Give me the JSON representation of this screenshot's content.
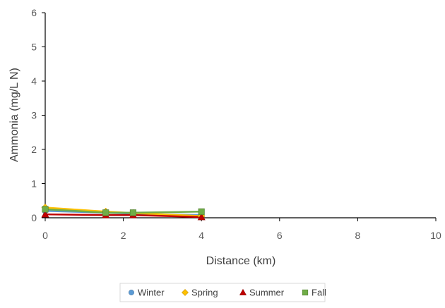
{
  "chart_data": {
    "type": "line",
    "title": "",
    "xlabel": "Distance (km)",
    "ylabel": "Ammonia (mg/L N)",
    "xlim": [
      0,
      10
    ],
    "ylim": [
      0,
      6
    ],
    "xticks": [
      "0",
      "2",
      "4",
      "6",
      "8",
      "10"
    ],
    "yticks": [
      "0",
      "1",
      "2",
      "3",
      "4",
      "5",
      "6"
    ],
    "grid": false,
    "legend_position": "bottom",
    "series": [
      {
        "name": "Winter",
        "marker": "circle",
        "color": "#5b9bd5",
        "line_color": "#5b9bd5",
        "x": [
          0,
          1.55,
          2.25,
          4.0
        ],
        "y": [
          0.2,
          0.15,
          0.12,
          0.08
        ]
      },
      {
        "name": "Spring",
        "marker": "diamond",
        "color": "#ffc000",
        "line_color": "#ffc000",
        "x": [
          0,
          1.55,
          2.25,
          4.0
        ],
        "y": [
          0.3,
          0.18,
          0.14,
          0.05
        ]
      },
      {
        "name": "Summer",
        "marker": "triangle",
        "color": "#c00000",
        "line_color": "#c00000",
        "x": [
          0,
          1.55,
          2.25,
          4.0
        ],
        "y": [
          0.1,
          0.08,
          0.08,
          0.02
        ]
      },
      {
        "name": "Fall",
        "marker": "square",
        "color": "#70ad47",
        "line_color": "#70ad47",
        "x": [
          0,
          1.55,
          2.25,
          4.0
        ],
        "y": [
          0.25,
          0.15,
          0.15,
          0.18
        ]
      }
    ]
  }
}
